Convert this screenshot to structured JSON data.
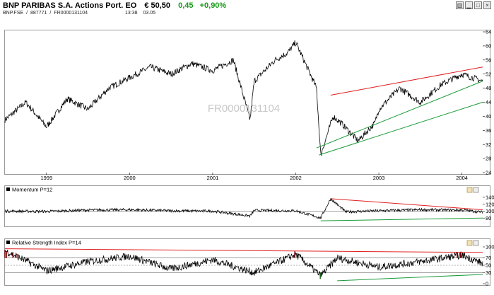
{
  "header": {
    "name": "BNP PARIBAS S.A. Actions Port. EO",
    "price": "€ 50,50",
    "change": "0,45",
    "change_pct": "+0,90%",
    "symbol": "BNP.FSE",
    "wkn": "887771",
    "isin": "FR0000131104",
    "time": "13:38",
    "date": "03.05"
  },
  "colors": {
    "price_line": "#000000",
    "red_trend": "#e02020",
    "green_trend": "#1a9a3a",
    "rsi_over": "#7a0000",
    "rsi_under": "#1a6a1a"
  },
  "chart_data": [
    {
      "type": "line",
      "title": "",
      "watermark": "FR0000131104",
      "x_ticks": [
        "1999",
        "2000",
        "2001",
        "2002",
        "2003",
        "2004"
      ],
      "y_ticks": [
        24,
        28,
        32,
        36,
        40,
        44,
        48,
        52,
        56,
        60,
        64
      ],
      "ylim": [
        24,
        64
      ],
      "series": [
        {
          "x": [
            1998.5,
            1998.75,
            1999.0,
            1999.25,
            1999.5,
            1999.75,
            2000.0,
            2000.25,
            2000.5,
            2000.75,
            2001.0,
            2001.25,
            2001.45,
            2001.5,
            2001.75,
            2001.9,
            2002.0,
            2002.25,
            2002.3,
            2002.45,
            2002.55,
            2002.75,
            2002.95,
            2003.0,
            2003.25,
            2003.5,
            2003.75,
            2004.0,
            2004.25
          ],
          "values": [
            39,
            44,
            37,
            45,
            42,
            48,
            51,
            54,
            52,
            55,
            53,
            56,
            39,
            50,
            56,
            58,
            61,
            48,
            29,
            40,
            38,
            33,
            38,
            42,
            48,
            44,
            49,
            52,
            50
          ]
        }
      ],
      "trendlines": [
        {
          "color": "red",
          "from": [
            2002.42,
            46
          ],
          "to": [
            2004.25,
            54
          ]
        },
        {
          "color": "green",
          "from": [
            2002.25,
            31
          ],
          "to": [
            2004.25,
            50
          ]
        },
        {
          "color": "green",
          "from": [
            2002.28,
            29
          ],
          "to": [
            2004.25,
            44
          ]
        }
      ]
    },
    {
      "type": "line",
      "title": "Momentum P=12",
      "y_ticks": [
        80,
        100,
        120,
        140
      ],
      "ylim": [
        60,
        150
      ],
      "reference_line": 100,
      "series": [
        {
          "x": [
            1998.5,
            1999.0,
            1999.5,
            2000.0,
            2000.5,
            2001.0,
            2001.45,
            2001.5,
            2002.0,
            2002.3,
            2002.42,
            2002.6,
            2003.0,
            2003.5,
            2004.0,
            2004.25
          ],
          "values": [
            100,
            99,
            103,
            104,
            101,
            100,
            86,
            102,
            101,
            80,
            136,
            98,
            101,
            104,
            103,
            97
          ]
        }
      ],
      "trendlines": [
        {
          "color": "red",
          "from": [
            2002.42,
            136
          ],
          "to": [
            2004.25,
            104
          ]
        },
        {
          "color": "green",
          "from": [
            2002.3,
            72
          ],
          "to": [
            2004.25,
            80
          ]
        }
      ]
    },
    {
      "type": "line",
      "title": "Relative Strength Index P=14",
      "y_ticks": [
        0,
        30,
        50,
        70,
        100
      ],
      "ylim": [
        0,
        100
      ],
      "reference_lines": [
        30,
        50,
        70
      ],
      "series": [
        {
          "x": [
            1998.5,
            1999.0,
            1999.5,
            2000.0,
            2000.5,
            2001.0,
            2001.5,
            2002.0,
            2002.3,
            2002.5,
            2003.0,
            2003.5,
            2004.0,
            2004.25
          ],
          "values": [
            90,
            35,
            60,
            75,
            40,
            65,
            30,
            80,
            22,
            70,
            45,
            60,
            78,
            55
          ]
        }
      ],
      "trendlines": [
        {
          "color": "red",
          "from": [
            1998.5,
            95
          ],
          "to": [
            2004.25,
            85
          ]
        },
        {
          "color": "green",
          "from": [
            2002.5,
            8
          ],
          "to": [
            2004.25,
            25
          ]
        }
      ]
    }
  ]
}
